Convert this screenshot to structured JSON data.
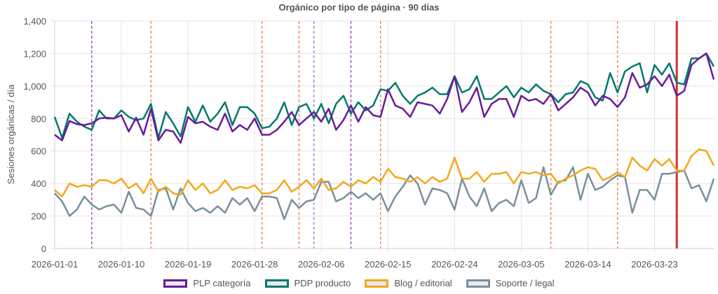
{
  "chart_data": {
    "type": "line",
    "title": "Orgánico por tipo de página · 90 días",
    "xlabel": "",
    "ylabel": "Sesiones orgánicas / día",
    "x_start": "2026-01-01",
    "x_end": "2026-03-31",
    "x_ticks": [
      "2026-01-01",
      "2026-01-10",
      "2026-01-19",
      "2026-01-28",
      "2026-02-06",
      "2026-02-15",
      "2026-02-24",
      "2026-03-05",
      "2026-03-14",
      "2026-03-23"
    ],
    "ylim": [
      0,
      1400
    ],
    "y_ticks": [
      "0",
      "200",
      "400",
      "600",
      "800",
      "1,000",
      "1,200",
      "1,400"
    ],
    "grid": true,
    "legend_position": "bottom",
    "series": [
      {
        "name": "PLP categoría",
        "color": "#6a1b9a",
        "values": [
          700,
          665,
          785,
          765,
          760,
          770,
          800,
          805,
          800,
          820,
          720,
          805,
          700,
          860,
          665,
          730,
          720,
          650,
          810,
          770,
          780,
          750,
          730,
          830,
          720,
          760,
          730,
          800,
          700,
          700,
          730,
          780,
          840,
          760,
          800,
          840,
          780,
          860,
          730,
          790,
          880,
          780,
          870,
          820,
          810,
          980,
          880,
          860,
          810,
          900,
          890,
          880,
          830,
          920,
          1060,
          840,
          900,
          990,
          810,
          890,
          920,
          920,
          810,
          940,
          910,
          920,
          890,
          950,
          850,
          890,
          930,
          990,
          960,
          880,
          940,
          920,
          870,
          930,
          1080,
          990,
          1010,
          1060,
          1000,
          1070,
          940,
          970,
          1130,
          1170,
          1200,
          1040
        ]
      },
      {
        "name": "PDP producto",
        "color": "#00796b",
        "values": [
          810,
          680,
          830,
          780,
          750,
          730,
          850,
          800,
          800,
          850,
          810,
          790,
          800,
          890,
          680,
          840,
          770,
          690,
          870,
          780,
          880,
          780,
          830,
          900,
          760,
          870,
          870,
          830,
          740,
          750,
          800,
          900,
          760,
          870,
          890,
          800,
          890,
          770,
          890,
          940,
          830,
          900,
          850,
          880,
          980,
          970,
          1020,
          940,
          890,
          940,
          960,
          990,
          950,
          950,
          1060,
          960,
          980,
          1060,
          920,
          920,
          960,
          1000,
          930,
          990,
          960,
          1010,
          970,
          950,
          900,
          950,
          960,
          1030,
          1010,
          930,
          910,
          1080,
          960,
          1090,
          1120,
          1140,
          960,
          1130,
          1070,
          1140,
          1020,
          1010,
          1170,
          1170,
          1200,
          1120
        ]
      },
      {
        "name": "Blog / editorial",
        "color": "#f2a81d",
        "values": [
          360,
          320,
          400,
          380,
          390,
          380,
          420,
          420,
          400,
          430,
          370,
          400,
          340,
          430,
          350,
          380,
          340,
          330,
          420,
          360,
          400,
          340,
          360,
          420,
          360,
          380,
          370,
          390,
          340,
          340,
          360,
          420,
          350,
          380,
          420,
          370,
          430,
          360,
          370,
          410,
          380,
          420,
          400,
          440,
          410,
          490,
          440,
          430,
          410,
          440,
          400,
          440,
          410,
          430,
          560,
          430,
          430,
          470,
          410,
          460,
          460,
          470,
          400,
          470,
          460,
          470,
          450,
          460,
          400,
          430,
          450,
          480,
          500,
          490,
          420,
          440,
          470,
          440,
          560,
          510,
          480,
          550,
          510,
          550,
          480,
          480,
          570,
          610,
          600,
          510
        ]
      },
      {
        "name": "Soporte / legal",
        "color": "#78909c",
        "values": [
          340,
          290,
          200,
          240,
          320,
          270,
          240,
          260,
          270,
          220,
          350,
          250,
          240,
          200,
          360,
          370,
          240,
          370,
          280,
          230,
          250,
          220,
          260,
          220,
          310,
          270,
          310,
          230,
          320,
          320,
          310,
          180,
          300,
          250,
          290,
          300,
          410,
          410,
          290,
          310,
          350,
          310,
          340,
          300,
          340,
          230,
          320,
          380,
          450,
          400,
          270,
          370,
          360,
          340,
          240,
          430,
          320,
          260,
          370,
          230,
          280,
          300,
          260,
          420,
          280,
          310,
          500,
          330,
          410,
          420,
          500,
          300,
          460,
          360,
          380,
          420,
          450,
          440,
          220,
          360,
          360,
          300,
          460,
          460,
          470,
          480,
          370,
          390,
          290,
          430
        ]
      }
    ],
    "event_lines": [
      {
        "date": "2026-01-06",
        "color": "#8e44ad",
        "style": "dashed"
      },
      {
        "date": "2026-01-14",
        "color": "#e67e50",
        "style": "dashed"
      },
      {
        "date": "2026-01-29",
        "color": "#e67e50",
        "style": "dashed"
      },
      {
        "date": "2026-02-03",
        "color": "#e67e50",
        "style": "dashed"
      },
      {
        "date": "2026-02-05",
        "color": "#7f86d6",
        "style": "dashed"
      },
      {
        "date": "2026-02-10",
        "color": "#8e44ad",
        "style": "dashed"
      },
      {
        "date": "2026-02-14",
        "color": "#e67e50",
        "style": "dashed"
      },
      {
        "date": "2026-03-09",
        "color": "#e67e50",
        "style": "dashed"
      },
      {
        "date": "2026-03-18",
        "color": "#e67e50",
        "style": "dashed"
      },
      {
        "date": "2026-03-26",
        "color": "#d32f2f",
        "style": "solid"
      }
    ]
  }
}
